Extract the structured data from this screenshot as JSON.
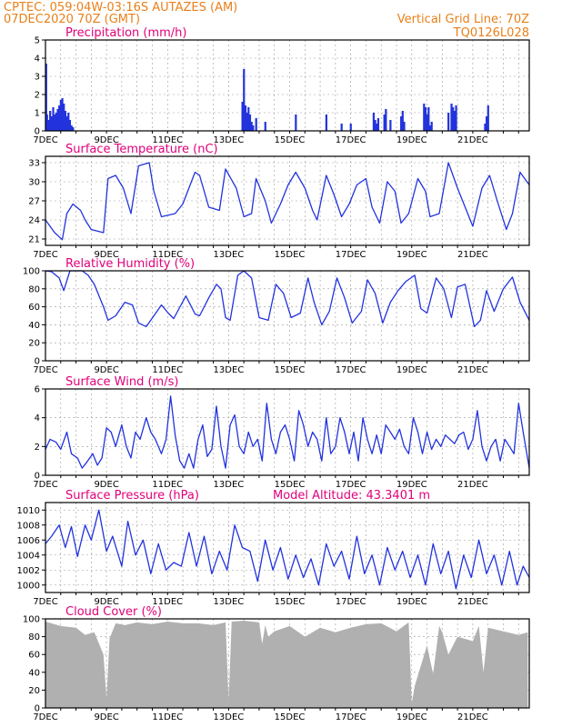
{
  "header": {
    "line1_left": "CPTEC:   059:04W-03:16S   AUTAZES (AM)",
    "line2_left": "07DEC2020  70Z  (GMT)",
    "line2_right": "Vertical Grid Line: 70Z",
    "line3_right": "TQ0126L028"
  },
  "colors": {
    "header": "#e8801a",
    "title": "#e0007a",
    "series": "#2233dd",
    "cloud": "#b0b0b0",
    "grid": "#999999"
  },
  "chart_data": [
    {
      "type": "bar",
      "title": "Precipitation (mm/h)",
      "ylim": [
        0,
        5
      ],
      "yticks": [
        "0",
        "1",
        "2",
        "3",
        "4",
        "5"
      ],
      "xticks": [
        "7DEC",
        "9DEC",
        "11DEC",
        "13DEC",
        "15DEC",
        "17DEC",
        "19DEC",
        "21DEC"
      ],
      "x_unit": "days since 07DEC 00Z",
      "series": [
        {
          "name": "precipitation",
          "x": [
            0.02,
            0.05,
            0.1,
            0.15,
            0.2,
            0.25,
            0.3,
            0.35,
            0.4,
            0.45,
            0.5,
            0.55,
            0.6,
            0.65,
            0.7,
            0.75,
            0.8,
            0.85,
            0.9,
            6.45,
            6.5,
            6.55,
            6.6,
            6.65,
            6.7,
            6.75,
            6.8,
            6.9,
            7.2,
            8.2,
            9.2,
            9.7,
            10.0,
            10.75,
            10.8,
            10.85,
            10.9,
            11.1,
            11.15,
            11.3,
            11.65,
            11.7,
            11.75,
            12.4,
            12.45,
            12.5,
            12.55,
            12.6,
            12.65,
            13.2,
            13.3,
            13.35,
            13.4,
            13.45,
            14.4,
            14.45,
            14.5
          ],
          "values": [
            3.7,
            0.9,
            0.6,
            1.1,
            0.8,
            1.3,
            0.9,
            1.0,
            1.2,
            1.4,
            1.7,
            1.8,
            1.5,
            1.1,
            0.8,
            1.0,
            0.6,
            0.3,
            0.2,
            1.6,
            3.4,
            1.4,
            1.0,
            1.3,
            0.9,
            0.5,
            0.3,
            0.7,
            0.5,
            0.9,
            0.9,
            0.4,
            0.4,
            1.0,
            0.6,
            0.4,
            0.7,
            0.9,
            1.2,
            0.6,
            0.8,
            1.1,
            0.5,
            1.5,
            1.3,
            0.9,
            1.3,
            0.3,
            0.5,
            1.0,
            1.5,
            1.3,
            1.1,
            1.4,
            0.4,
            0.8,
            1.4
          ]
        }
      ]
    },
    {
      "type": "line",
      "title": "Surface Temperature (nC)",
      "ylim": [
        20,
        34
      ],
      "yticks": [
        "21",
        "24",
        "27",
        "30",
        "33"
      ],
      "xticks": [
        "7DEC",
        "9DEC",
        "11DEC",
        "13DEC",
        "15DEC",
        "17DEC",
        "19DEC",
        "21DEC"
      ],
      "x_unit": "days since 07DEC 00Z",
      "series": [
        {
          "name": "temperature",
          "x": [
            0,
            0.3,
            0.55,
            0.7,
            0.9,
            1.15,
            1.3,
            1.5,
            1.9,
            2.05,
            2.3,
            2.55,
            2.8,
            3.05,
            3.4,
            3.55,
            3.8,
            4.25,
            4.5,
            4.9,
            5.05,
            5.35,
            5.7,
            5.9,
            6.25,
            6.5,
            6.75,
            6.9,
            7.2,
            7.4,
            7.7,
            7.95,
            8.2,
            8.5,
            8.75,
            8.9,
            9.2,
            9.45,
            9.7,
            9.95,
            10.2,
            10.5,
            10.7,
            10.95,
            11.2,
            11.45,
            11.65,
            11.9,
            12.2,
            12.45,
            12.6,
            12.9,
            13.2,
            13.5,
            13.75,
            14.0,
            14.3,
            14.55,
            14.8,
            15.1,
            15.3,
            15.55,
            15.85
          ],
          "values": [
            24.0,
            22.0,
            20.9,
            25.0,
            26.5,
            25.5,
            24.0,
            22.5,
            22.0,
            30.5,
            31.0,
            29.0,
            25.0,
            32.5,
            33.0,
            28.5,
            24.5,
            25.0,
            26.5,
            31.5,
            31.0,
            26.0,
            25.5,
            32.0,
            29.0,
            24.5,
            25.0,
            30.5,
            27.0,
            23.5,
            26.5,
            29.5,
            31.5,
            29.0,
            25.5,
            24.0,
            31.0,
            28.0,
            24.5,
            26.5,
            29.5,
            30.5,
            26.0,
            23.5,
            30.0,
            28.5,
            23.5,
            25.0,
            30.5,
            28.5,
            24.5,
            25.0,
            33.0,
            29.0,
            26.0,
            23.0,
            29.0,
            31.0,
            27.0,
            22.5,
            25.0,
            31.5,
            29.5
          ]
        }
      ]
    },
    {
      "type": "line",
      "title": "Relative Humidity (%)",
      "ylim": [
        0,
        100
      ],
      "yticks": [
        "0",
        "20",
        "40",
        "60",
        "80",
        "100"
      ],
      "xticks": [
        "7DEC",
        "9DEC",
        "11DEC",
        "13DEC",
        "15DEC",
        "17DEC",
        "19DEC",
        "21DEC"
      ],
      "x_unit": "days since 07DEC 00Z",
      "series": [
        {
          "name": "relative humidity",
          "x": [
            0,
            0.2,
            0.45,
            0.6,
            0.8,
            1.2,
            1.4,
            1.6,
            1.9,
            2.05,
            2.3,
            2.6,
            2.85,
            3.05,
            3.3,
            3.55,
            3.8,
            4.05,
            4.2,
            4.6,
            4.9,
            5.05,
            5.35,
            5.6,
            5.75,
            5.9,
            6.05,
            6.3,
            6.5,
            6.75,
            7.0,
            7.3,
            7.55,
            7.8,
            8.05,
            8.35,
            8.6,
            8.8,
            9.05,
            9.3,
            9.55,
            9.8,
            10.05,
            10.35,
            10.55,
            10.8,
            11.05,
            11.3,
            11.55,
            11.8,
            12.1,
            12.3,
            12.5,
            12.8,
            13.05,
            13.3,
            13.5,
            13.75,
            14.05,
            14.25,
            14.45,
            14.7,
            15.0,
            15.3,
            15.55,
            15.85
          ],
          "values": [
            100,
            99,
            92,
            78,
            100,
            100,
            95,
            85,
            60,
            45,
            50,
            65,
            62,
            42,
            38,
            50,
            62,
            52,
            47,
            72,
            52,
            50,
            70,
            85,
            80,
            48,
            45,
            95,
            100,
            92,
            48,
            45,
            85,
            75,
            48,
            53,
            92,
            65,
            40,
            55,
            92,
            70,
            42,
            55,
            90,
            75,
            42,
            65,
            78,
            88,
            95,
            58,
            53,
            92,
            80,
            48,
            82,
            85,
            38,
            45,
            78,
            55,
            80,
            93,
            65,
            45
          ]
        }
      ]
    },
    {
      "type": "line",
      "title": "Surface Wind (m/s)",
      "ylim": [
        0,
        6
      ],
      "yticks": [
        "0",
        "2",
        "4",
        "6"
      ],
      "xticks": [
        "7DEC",
        "9DEC",
        "11DEC",
        "13DEC",
        "15DEC",
        "17DEC",
        "19DEC",
        "21DEC"
      ],
      "x_unit": "days since 07DEC 00Z",
      "series": [
        {
          "name": "wind speed",
          "x": [
            0,
            0.15,
            0.35,
            0.5,
            0.7,
            0.85,
            1.05,
            1.2,
            1.35,
            1.55,
            1.7,
            1.85,
            2.0,
            2.15,
            2.3,
            2.5,
            2.65,
            2.8,
            2.95,
            3.1,
            3.3,
            3.45,
            3.6,
            3.8,
            3.95,
            4.1,
            4.25,
            4.4,
            4.55,
            4.7,
            4.85,
            5.0,
            5.15,
            5.3,
            5.45,
            5.6,
            5.75,
            5.9,
            6.05,
            6.2,
            6.35,
            6.5,
            6.65,
            6.8,
            6.95,
            7.1,
            7.25,
            7.4,
            7.55,
            7.7,
            7.85,
            8.0,
            8.15,
            8.3,
            8.45,
            8.6,
            8.75,
            8.9,
            9.05,
            9.2,
            9.35,
            9.5,
            9.65,
            9.8,
            9.95,
            10.1,
            10.25,
            10.4,
            10.55,
            10.7,
            10.85,
            11.0,
            11.15,
            11.3,
            11.45,
            11.6,
            11.75,
            11.9,
            12.05,
            12.2,
            12.35,
            12.5,
            12.65,
            12.8,
            12.95,
            13.1,
            13.25,
            13.4,
            13.55,
            13.7,
            13.85,
            14.0,
            14.15,
            14.3,
            14.45,
            14.6,
            14.75,
            14.9,
            15.05,
            15.2,
            15.35,
            15.5,
            15.65,
            15.85
          ],
          "values": [
            1.8,
            2.5,
            2.3,
            1.8,
            3.0,
            1.5,
            1.2,
            0.5,
            0.9,
            1.5,
            0.7,
            1.2,
            3.3,
            3.0,
            2.0,
            3.5,
            2.0,
            1.2,
            3.0,
            2.5,
            4.0,
            3.0,
            2.5,
            1.5,
            2.5,
            5.5,
            2.8,
            1.0,
            0.5,
            1.5,
            0.5,
            2.5,
            3.5,
            1.3,
            1.8,
            4.8,
            2.0,
            0.5,
            3.5,
            4.2,
            2.0,
            1.5,
            3.0,
            2.0,
            2.5,
            1.0,
            5.0,
            2.5,
            1.5,
            3.0,
            3.5,
            2.5,
            1.0,
            4.5,
            3.5,
            2.0,
            3.0,
            2.5,
            1.0,
            4.0,
            1.5,
            2.0,
            4.0,
            3.0,
            1.5,
            3.0,
            1.0,
            4.0,
            2.5,
            1.5,
            2.8,
            1.5,
            3.5,
            3.0,
            2.5,
            3.2,
            2.0,
            1.5,
            4.0,
            3.0,
            1.5,
            3.0,
            1.8,
            2.5,
            2.0,
            2.8,
            2.5,
            2.2,
            2.8,
            3.0,
            1.8,
            2.5,
            4.5,
            2.0,
            1.0,
            2.0,
            2.5,
            1.0,
            2.5,
            2.0,
            1.5,
            5.0,
            3.0,
            0.5
          ]
        }
      ]
    },
    {
      "type": "line",
      "title": "Surface Pressure (hPa)",
      "annotation": "Model Altitude: 43.3401  m",
      "ylim": [
        999,
        1011
      ],
      "yticks": [
        "1000",
        "1002",
        "1004",
        "1006",
        "1008",
        "1010"
      ],
      "xticks": [
        "7DEC",
        "9DEC",
        "11DEC",
        "13DEC",
        "15DEC",
        "17DEC",
        "19DEC",
        "21DEC"
      ],
      "x_unit": "days since 07DEC 00Z",
      "series": [
        {
          "name": "pressure",
          "x": [
            0,
            0.2,
            0.45,
            0.65,
            0.85,
            1.05,
            1.3,
            1.5,
            1.75,
            2.0,
            2.2,
            2.5,
            2.7,
            2.95,
            3.2,
            3.45,
            3.7,
            3.95,
            4.2,
            4.45,
            4.7,
            4.95,
            5.2,
            5.45,
            5.7,
            5.95,
            6.2,
            6.45,
            6.7,
            6.95,
            7.2,
            7.45,
            7.7,
            7.95,
            8.2,
            8.45,
            8.7,
            8.95,
            9.2,
            9.45,
            9.7,
            9.95,
            10.2,
            10.45,
            10.7,
            10.95,
            11.2,
            11.45,
            11.7,
            11.95,
            12.2,
            12.45,
            12.7,
            12.95,
            13.2,
            13.45,
            13.7,
            13.95,
            14.2,
            14.45,
            14.7,
            14.95,
            15.2,
            15.45,
            15.65,
            15.85
          ],
          "values": [
            1005.5,
            1006.5,
            1008.0,
            1005.0,
            1007.8,
            1003.8,
            1008.0,
            1006.0,
            1010.0,
            1004.5,
            1006.5,
            1002.5,
            1008.5,
            1004.0,
            1006.0,
            1001.5,
            1005.5,
            1002.0,
            1003.0,
            1002.5,
            1007.0,
            1002.5,
            1006.5,
            1001.5,
            1004.5,
            1002.0,
            1008.0,
            1005.0,
            1004.5,
            1000.5,
            1006.0,
            1002.0,
            1005.0,
            1000.8,
            1004.0,
            1001.0,
            1003.5,
            1000.0,
            1005.5,
            1002.5,
            1004.5,
            1000.8,
            1006.5,
            1001.5,
            1004.0,
            1000.0,
            1005.0,
            1002.0,
            1004.5,
            1001.0,
            1004.0,
            1000.0,
            1005.5,
            1001.5,
            1004.5,
            999.5,
            1004.0,
            1001.0,
            1006.0,
            1001.5,
            1004.0,
            1000.0,
            1004.5,
            1000.0,
            1002.5,
            1001.0
          ]
        }
      ]
    },
    {
      "type": "area",
      "title": "Cloud Cover (%)",
      "ylim": [
        0,
        100
      ],
      "yticks": [
        "0",
        "20",
        "40",
        "60",
        "80",
        "100"
      ],
      "xticks": [
        "7DEC",
        "9DEC",
        "11DEC",
        "13DEC",
        "15DEC",
        "17DEC",
        "19DEC",
        "21DEC"
      ],
      "x_unit": "days since 07DEC 00Z",
      "series": [
        {
          "name": "cloud cover",
          "x": [
            0,
            0.5,
            1.0,
            1.3,
            1.6,
            1.9,
            2.0,
            2.1,
            2.3,
            2.6,
            3.0,
            3.5,
            4.0,
            4.5,
            5.0,
            5.5,
            5.9,
            6.0,
            6.1,
            6.5,
            7.0,
            7.1,
            7.2,
            7.3,
            7.5,
            8.0,
            8.5,
            9.0,
            9.5,
            10.0,
            10.5,
            11.0,
            11.5,
            11.9,
            12.0,
            12.1,
            12.5,
            12.7,
            12.9,
            13.0,
            13.2,
            13.5,
            14.0,
            14.2,
            14.35,
            14.5,
            15.0,
            15.5,
            15.8
          ],
          "values": [
            97,
            92,
            90,
            82,
            85,
            60,
            10,
            78,
            95,
            93,
            96,
            94,
            97,
            95,
            95,
            93,
            96,
            8,
            97,
            98,
            96,
            72,
            93,
            80,
            86,
            92,
            80,
            90,
            85,
            90,
            94,
            95,
            86,
            96,
            5,
            25,
            70,
            38,
            92,
            85,
            60,
            80,
            75,
            92,
            40,
            90,
            86,
            82,
            85
          ]
        }
      ]
    }
  ]
}
